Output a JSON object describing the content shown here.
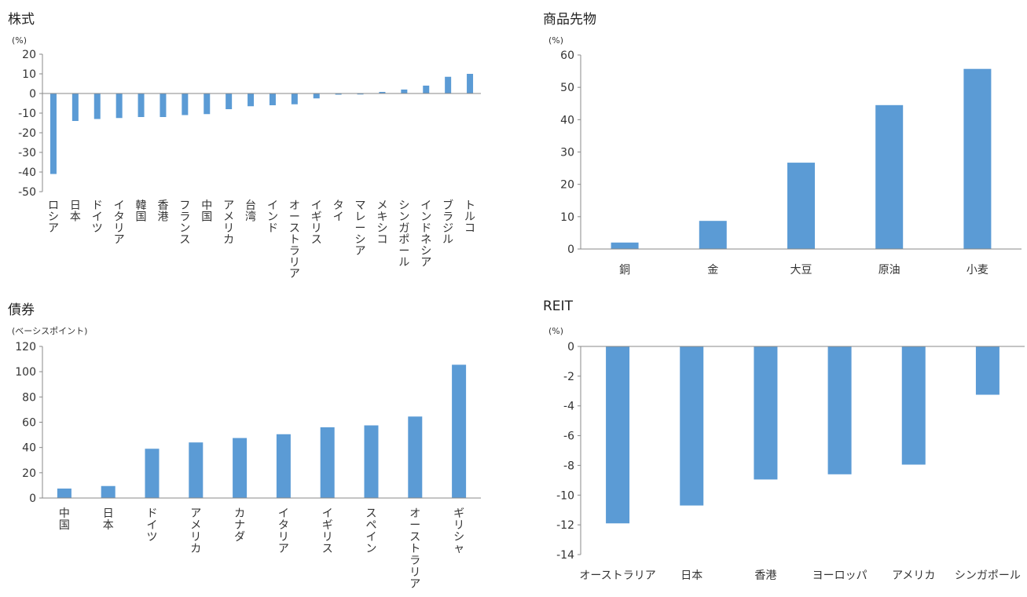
{
  "chart_data": [
    {
      "id": "stocks",
      "type": "bar",
      "title": "株式",
      "unit": "(%)",
      "ylim": [
        -50,
        20
      ],
      "yticks": [
        20,
        10,
        0,
        -10,
        -20,
        -30,
        -40,
        -50
      ],
      "categories": [
        "ロシア",
        "日本",
        "ドイツ",
        "イタリア",
        "韓国",
        "香港",
        "フランス",
        "中国",
        "アメリカ",
        "台湾",
        "インド",
        "オーストラリア",
        "イギリス",
        "タイ",
        "マレーシア",
        "メキシコ",
        "シンガポール",
        "インドネシア",
        "ブラジル",
        "トルコ"
      ],
      "values": [
        -41,
        -14,
        -13,
        -12.5,
        -12,
        -12,
        -11,
        -10.5,
        -8,
        -6.5,
        -6,
        -5.5,
        -2.5,
        -0.6,
        -0.5,
        0.8,
        2,
        4,
        8.5,
        10
      ],
      "label_orientation": "vertical",
      "color": "#5b9bd5"
    },
    {
      "id": "commodities",
      "type": "bar",
      "title": "商品先物",
      "unit": "(%)",
      "ylim": [
        0,
        60
      ],
      "yticks": [
        60,
        50,
        40,
        30,
        20,
        10,
        0
      ],
      "categories": [
        "銅",
        "金",
        "大豆",
        "原油",
        "小麦"
      ],
      "values": [
        2,
        8.7,
        26.7,
        44.5,
        55.7
      ],
      "label_orientation": "horizontal",
      "color": "#5b9bd5"
    },
    {
      "id": "bonds",
      "type": "bar",
      "title": "債券",
      "unit": "(ベーシスポイント)",
      "ylim": [
        0,
        120
      ],
      "yticks": [
        120,
        100,
        80,
        60,
        40,
        20,
        0
      ],
      "categories": [
        "中国",
        "日本",
        "ドイツ",
        "アメリカ",
        "カナダ",
        "イタリア",
        "イギリス",
        "スペイン",
        "オーストラリア",
        "ギリシャ"
      ],
      "values": [
        7.5,
        9.5,
        39,
        44,
        47.5,
        50.5,
        56,
        57.5,
        64.5,
        105.5
      ],
      "label_orientation": "vertical",
      "color": "#5b9bd5"
    },
    {
      "id": "reit",
      "type": "bar",
      "title": "REIT",
      "unit": "(%)",
      "ylim": [
        -14,
        0
      ],
      "yticks": [
        0,
        -2,
        -4,
        -6,
        -8,
        -10,
        -12,
        -14
      ],
      "categories": [
        "オーストラリア",
        "日本",
        "香港",
        "ヨーロッパ",
        "アメリカ",
        "シンガポール"
      ],
      "values": [
        -11.9,
        -10.7,
        -8.95,
        -8.6,
        -7.95,
        -3.25
      ],
      "label_orientation": "horizontal",
      "color": "#5b9bd5"
    }
  ]
}
